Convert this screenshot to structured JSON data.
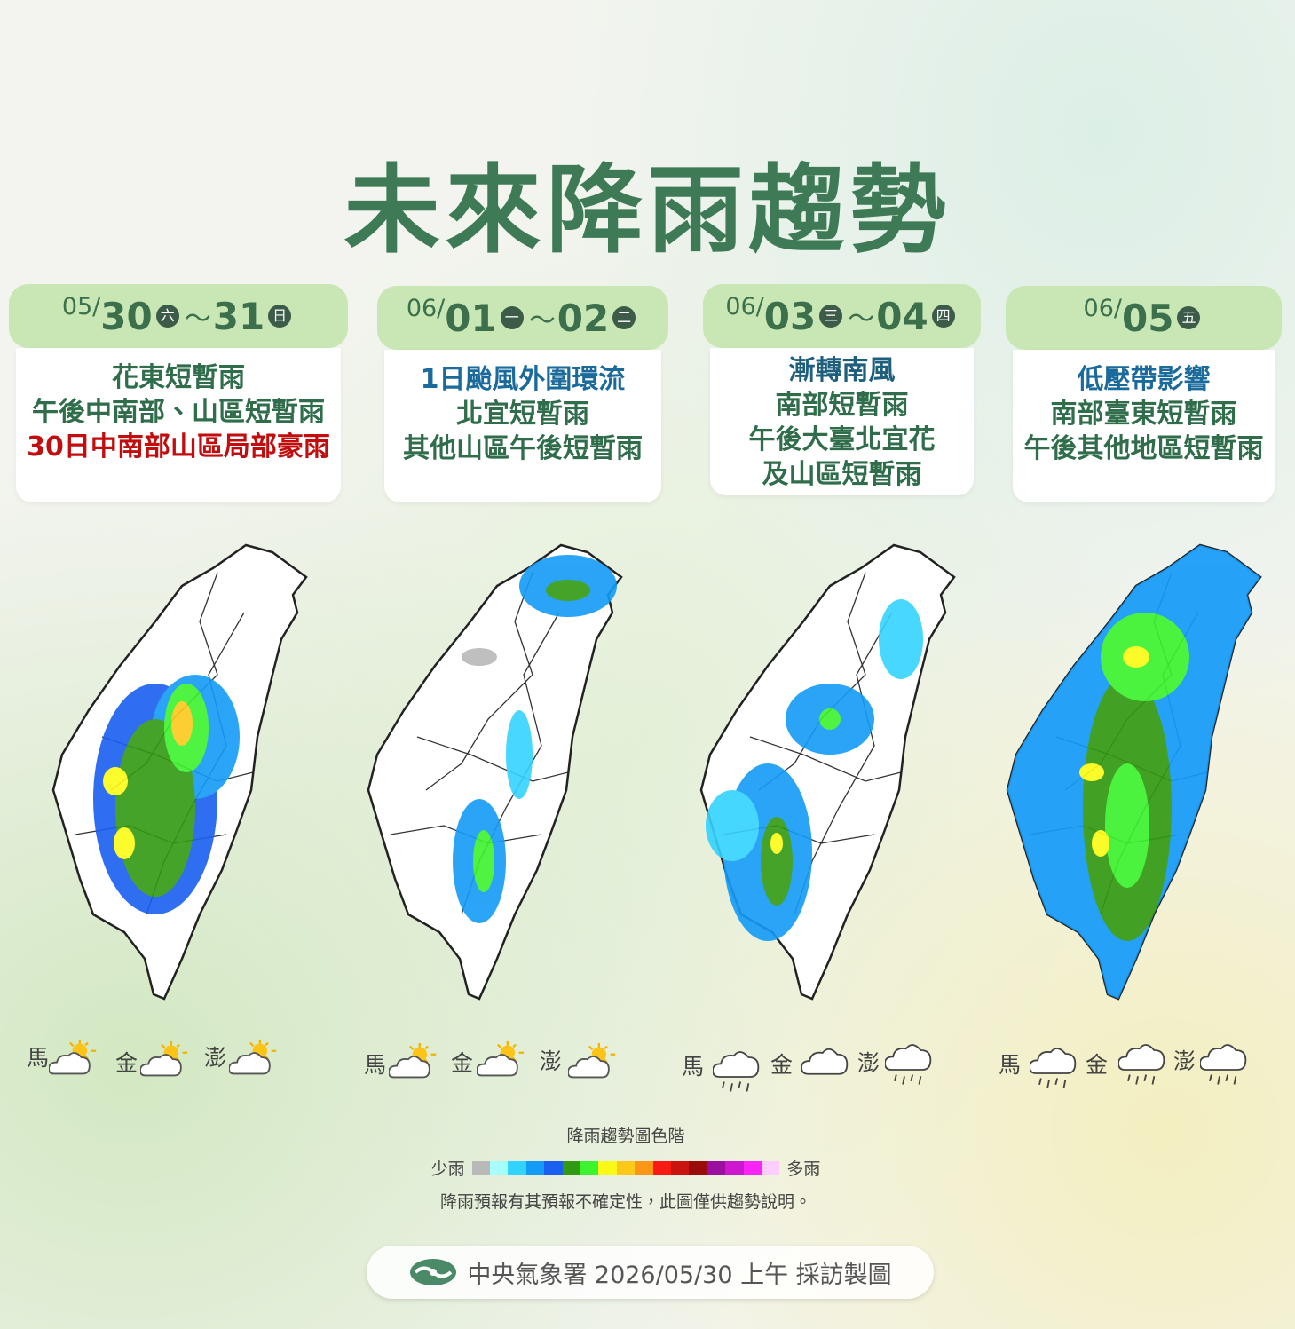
{
  "title": "未來降雨趨勢",
  "panels": [
    {
      "month": "05/",
      "day": "30",
      "weekday": "六",
      "sep": "～",
      "day2": "31",
      "weekday2": "日",
      "lines": [
        "花東短暫雨",
        "午後中南部、山區短暫雨",
        "30日中南部山區局部豪雨"
      ],
      "islands": [
        "馬",
        "金",
        "澎"
      ]
    },
    {
      "month": "06/",
      "day": "01",
      "weekday": "一",
      "sep": "～",
      "day2": "02",
      "weekday2": "二",
      "lines": [
        "1日颱風外圍環流",
        "北宜短暫雨",
        "其他山區午後短暫雨"
      ],
      "islands": [
        "馬",
        "金",
        "澎"
      ]
    },
    {
      "month": "06/",
      "day": "03",
      "weekday": "三",
      "sep": "～",
      "day2": "04",
      "weekday2": "四",
      "lines": [
        "漸轉南風",
        "南部短暫雨",
        "午後大臺北宜花",
        "及山區短暫雨"
      ],
      "islands": [
        "馬",
        "金",
        "澎"
      ]
    },
    {
      "month": "06/",
      "day": "05",
      "weekday": "五",
      "lines": [
        "低壓帶影響",
        "南部臺東短暫雨",
        "午後其他地區短暫雨"
      ],
      "islands": [
        "馬",
        "金",
        "澎"
      ]
    }
  ],
  "legend": {
    "title": "降雨趨勢圖色階",
    "low": "少雨",
    "high": "多雨",
    "colors": [
      "#b9b9b9",
      "#a6fdfd",
      "#33d3ff",
      "#139bf7",
      "#1a5ff0",
      "#329a12",
      "#3df22e",
      "#fbfb17",
      "#fcc91b",
      "#fb9617",
      "#f71b14",
      "#c91410",
      "#9a0c0c",
      "#9a0f9f",
      "#cc17cf",
      "#f925f6",
      "#fccdfd"
    ],
    "note": "降雨預報有其預報不確定性，此圖僅供趨勢說明。"
  },
  "footer": "中央氣象署 2026/05/30 上午 採訪製圖"
}
